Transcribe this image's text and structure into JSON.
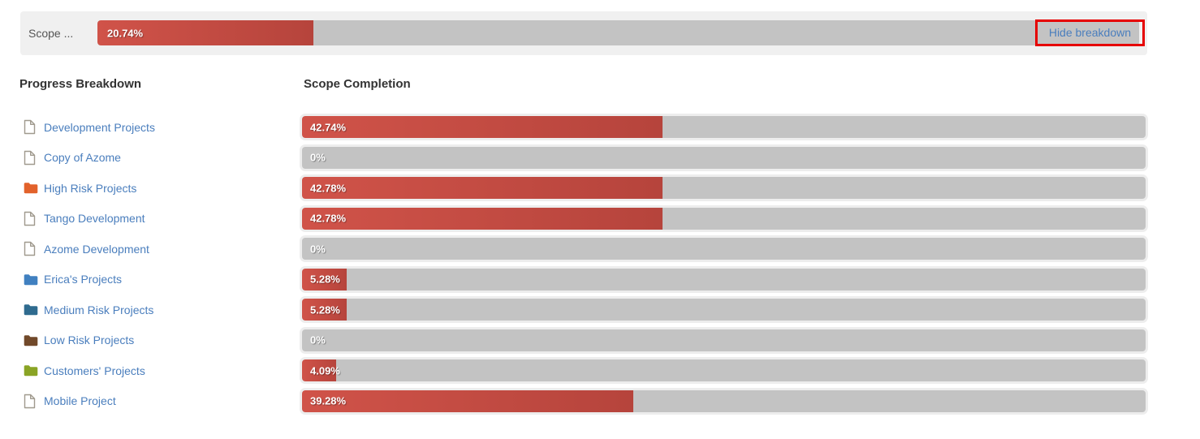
{
  "top_bar": {
    "label": "Scope ...",
    "progress_pct": 20.74,
    "progress_label": "20.74%",
    "hide_breakdown_label": "Hide breakdown"
  },
  "headers": {
    "left": "Progress Breakdown",
    "right": "Scope Completion"
  },
  "rows": [
    {
      "label": "Development Projects",
      "icon": "file",
      "icon_color": "#a09a8e",
      "pct": 42.74,
      "pct_label": "42.74%"
    },
    {
      "label": "Copy of Azome",
      "icon": "file",
      "icon_color": "#a09a8e",
      "pct": 0,
      "pct_label": "0%"
    },
    {
      "label": "High Risk Projects",
      "icon": "folder",
      "icon_color": "#e2622b",
      "pct": 42.78,
      "pct_label": "42.78%"
    },
    {
      "label": "Tango Development",
      "icon": "file",
      "icon_color": "#a09a8e",
      "pct": 42.78,
      "pct_label": "42.78%"
    },
    {
      "label": "Azome Development",
      "icon": "file",
      "icon_color": "#a09a8e",
      "pct": 0,
      "pct_label": "0%"
    },
    {
      "label": "Erica's Projects",
      "icon": "folder",
      "icon_color": "#4080c0",
      "pct": 5.28,
      "pct_label": "5.28%"
    },
    {
      "label": "Medium Risk Projects",
      "icon": "folder",
      "icon_color": "#2f6b8f",
      "pct": 5.28,
      "pct_label": "5.28%"
    },
    {
      "label": "Low Risk Projects",
      "icon": "folder",
      "icon_color": "#71492a",
      "pct": 0,
      "pct_label": "0%"
    },
    {
      "label": "Customers' Projects",
      "icon": "folder",
      "icon_color": "#8aa425",
      "pct": 4.09,
      "pct_label": "4.09%"
    },
    {
      "label": "Mobile Project",
      "icon": "file",
      "icon_color": "#a09a8e",
      "pct": 39.28,
      "pct_label": "39.28%"
    }
  ],
  "chart_data": {
    "type": "bar",
    "title": "Scope Completion",
    "categories": [
      "Development Projects",
      "Copy of Azome",
      "High Risk Projects",
      "Tango Development",
      "Azome Development",
      "Erica's Projects",
      "Medium Risk Projects",
      "Low Risk Projects",
      "Customers' Projects",
      "Mobile Project"
    ],
    "values": [
      42.74,
      0,
      42.78,
      42.78,
      0,
      5.28,
      5.28,
      0,
      4.09,
      39.28
    ],
    "xlabel": "",
    "ylabel": "",
    "xlim": [
      0,
      100
    ],
    "overall_value": 20.74
  },
  "colors": {
    "bar_fill_start": "#d05349",
    "bar_fill_end": "#b6443c",
    "bar_track": "#c3c3c3",
    "panel_bg": "#f0f0f0",
    "link_blue": "#4a7ebd",
    "annotation_red": "#e60000",
    "header_text": "#333333"
  }
}
